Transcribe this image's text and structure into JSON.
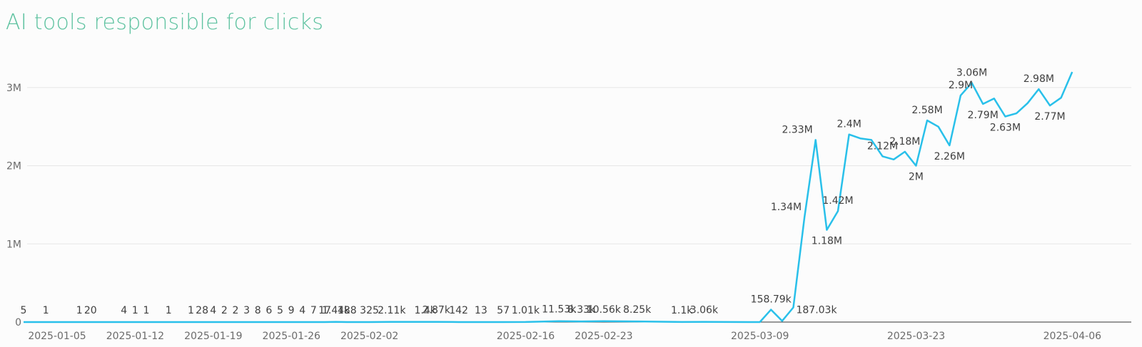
{
  "colors": {
    "title": "#5ec2a0",
    "line": "#29c0ea",
    "grid": "#e6e6e6",
    "axis": "#333333"
  },
  "chart_data": {
    "type": "line",
    "title": "AI tools responsible for clicks",
    "xlabel": "",
    "ylabel": "",
    "ylim": [
      0,
      3300000
    ],
    "x_start": "2025-01-05",
    "x_end": "2025-04-12",
    "yticks": [
      {
        "value": 0,
        "label": "0"
      },
      {
        "value": 1000000,
        "label": "1M"
      },
      {
        "value": 2000000,
        "label": "2M"
      },
      {
        "value": 3000000,
        "label": "3M"
      }
    ],
    "xticks": [
      "2025-01-05",
      "2025-01-12",
      "2025-01-19",
      "2025-01-26",
      "2025-02-02",
      "2025-02-16",
      "2025-02-23",
      "2025-03-09",
      "2025-03-23",
      "2025-04-06"
    ],
    "grid": true,
    "series": [
      {
        "points": [
          {
            "x": "2025-01-05",
            "y": 5,
            "label": "5"
          },
          {
            "x": "2025-01-07",
            "y": 1,
            "label": "1"
          },
          {
            "x": "2025-01-10",
            "y": 1,
            "label": "1"
          },
          {
            "x": "2025-01-11",
            "y": 20,
            "label": "20"
          },
          {
            "x": "2025-01-14",
            "y": 4,
            "label": "4"
          },
          {
            "x": "2025-01-15",
            "y": 1,
            "label": "1"
          },
          {
            "x": "2025-01-16",
            "y": 1,
            "label": "1"
          },
          {
            "x": "2025-01-18",
            "y": 1,
            "label": "1"
          },
          {
            "x": "2025-01-20",
            "y": 1,
            "label": "1"
          },
          {
            "x": "2025-01-21",
            "y": 28,
            "label": "28"
          },
          {
            "x": "2025-01-22",
            "y": 4,
            "label": "4"
          },
          {
            "x": "2025-01-23",
            "y": 2,
            "label": "2"
          },
          {
            "x": "2025-01-24",
            "y": 2,
            "label": "2"
          },
          {
            "x": "2025-01-25",
            "y": 3,
            "label": "3"
          },
          {
            "x": "2025-01-26",
            "y": 8,
            "label": "8"
          },
          {
            "x": "2025-01-27",
            "y": 6,
            "label": "6"
          },
          {
            "x": "2025-01-28",
            "y": 5,
            "label": "5"
          },
          {
            "x": "2025-01-29",
            "y": 9,
            "label": "9"
          },
          {
            "x": "2025-01-30",
            "y": 4,
            "label": "4"
          },
          {
            "x": "2025-01-31",
            "y": 7,
            "label": "7"
          },
          {
            "x": "2025-02-01",
            "y": 17,
            "label": "17"
          },
          {
            "x": "2025-02-02",
            "y": 1440,
            "label": "1.44k"
          },
          {
            "x": "2025-02-03",
            "y": 188,
            "label": "188"
          },
          {
            "x": "2025-02-05",
            "y": 325,
            "label": "325"
          },
          {
            "x": "2025-02-07",
            "y": 2110,
            "label": "2.11k"
          },
          {
            "x": "2025-02-10",
            "y": 1400,
            "label": "1.4k"
          },
          {
            "x": "2025-02-11",
            "y": 2870,
            "label": "2.87k"
          },
          {
            "x": "2025-02-13",
            "y": 142,
            "label": "142"
          },
          {
            "x": "2025-02-15",
            "y": 13,
            "label": "13"
          },
          {
            "x": "2025-02-17",
            "y": 57,
            "label": "57"
          },
          {
            "x": "2025-02-19",
            "y": 1010,
            "label": "1.01k"
          },
          {
            "x": "2025-02-22",
            "y": 11530,
            "label": "11.53k"
          },
          {
            "x": "2025-02-24",
            "y": 8330,
            "label": "8.33k"
          },
          {
            "x": "2025-02-26",
            "y": 10560,
            "label": "10.56k"
          },
          {
            "x": "2025-03-01",
            "y": 8250,
            "label": "8.25k"
          },
          {
            "x": "2025-03-05",
            "y": 1100,
            "label": "1.1k"
          },
          {
            "x": "2025-03-07",
            "y": 3060,
            "label": "3.06k"
          },
          {
            "x": "2025-03-11",
            "y": 0,
            "label": ""
          },
          {
            "x": "2025-03-12",
            "y": 0,
            "label": ""
          },
          {
            "x": "2025-03-13",
            "y": 158790,
            "label": "158.79k"
          },
          {
            "x": "2025-03-14",
            "y": 15000,
            "label": ""
          },
          {
            "x": "2025-03-15",
            "y": 187030,
            "label": "187.03k"
          },
          {
            "x": "2025-03-16",
            "y": 1340000,
            "label": "1.34M"
          },
          {
            "x": "2025-03-17",
            "y": 2330000,
            "label": "2.33M"
          },
          {
            "x": "2025-03-18",
            "y": 1180000,
            "label": "1.18M"
          },
          {
            "x": "2025-03-19",
            "y": 1420000,
            "label": "1.42M"
          },
          {
            "x": "2025-03-20",
            "y": 2400000,
            "label": "2.4M"
          },
          {
            "x": "2025-03-21",
            "y": 2350000,
            "label": ""
          },
          {
            "x": "2025-03-22",
            "y": 2330000,
            "label": ""
          },
          {
            "x": "2025-03-23",
            "y": 2120000,
            "label": "2.12M"
          },
          {
            "x": "2025-03-24",
            "y": 2080000,
            "label": ""
          },
          {
            "x": "2025-03-25",
            "y": 2180000,
            "label": "2.18M"
          },
          {
            "x": "2025-03-26",
            "y": 2000000,
            "label": "2M"
          },
          {
            "x": "2025-03-27",
            "y": 2580000,
            "label": "2.58M"
          },
          {
            "x": "2025-03-28",
            "y": 2500000,
            "label": ""
          },
          {
            "x": "2025-03-29",
            "y": 2260000,
            "label": "2.26M"
          },
          {
            "x": "2025-03-30",
            "y": 2900000,
            "label": "2.9M"
          },
          {
            "x": "2025-03-31",
            "y": 3060000,
            "label": "3.06M"
          },
          {
            "x": "2025-04-01",
            "y": 2790000,
            "label": "2.79M"
          },
          {
            "x": "2025-04-02",
            "y": 2860000,
            "label": ""
          },
          {
            "x": "2025-04-03",
            "y": 2630000,
            "label": "2.63M"
          },
          {
            "x": "2025-04-04",
            "y": 2670000,
            "label": ""
          },
          {
            "x": "2025-04-05",
            "y": 2800000,
            "label": ""
          },
          {
            "x": "2025-04-06",
            "y": 2980000,
            "label": "2.98M"
          },
          {
            "x": "2025-04-07",
            "y": 2770000,
            "label": "2.77M"
          },
          {
            "x": "2025-04-08",
            "y": 2870000,
            "label": ""
          },
          {
            "x": "2025-04-09",
            "y": 3200000,
            "label": ""
          }
        ]
      }
    ]
  }
}
